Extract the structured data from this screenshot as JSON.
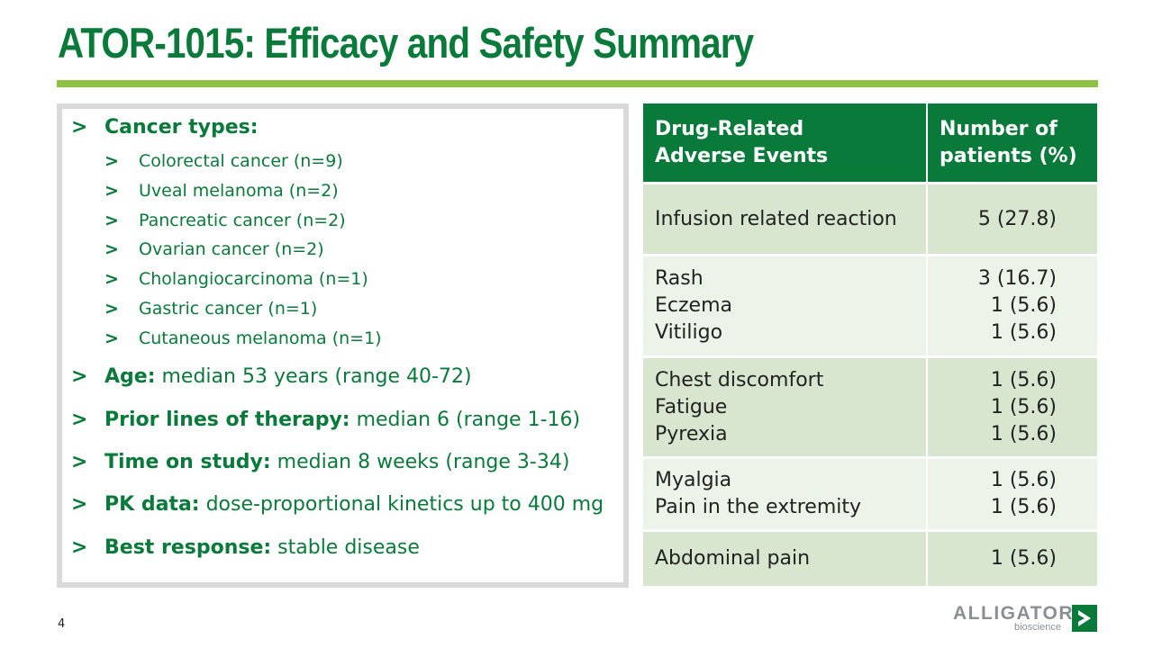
{
  "title": "ATOR-1015: Efficacy and Safety Summary",
  "left_panel": {
    "cancer_types_label": "Cancer types:",
    "cancer_types": [
      "Colorectal cancer (n=9)",
      "Uveal melanoma (n=2)",
      "Pancreatic cancer (n=2)",
      "Ovarian cancer (n=2)",
      "Cholangiocarcinoma (n=1)",
      "Gastric cancer (n=1)",
      "Cutaneous melanoma (n=1)"
    ],
    "bullets": [
      {
        "label": "Age:",
        "value": " median 53 years (range 40-72)"
      },
      {
        "label": "Prior lines of therapy:",
        "value": " median 6 (range 1-16)"
      },
      {
        "label": "Time on study:",
        "value": " median 8 weeks (range 3-34)"
      },
      {
        "label": "PK data:",
        "value": " dose-proportional kinetics up to 400 mg"
      },
      {
        "label": "Best response:",
        "value": " stable disease"
      }
    ],
    "arrow_glyph": ">"
  },
  "table": {
    "header": {
      "col1_line1": "Drug-Related",
      "col1_line2": "Adverse Events",
      "col2_line1": "Number of",
      "col2_line2": "patients (%)"
    },
    "groups": [
      {
        "events": [
          "Infusion related reaction"
        ],
        "counts": [
          "5 (27.8)"
        ]
      },
      {
        "events": [
          "Rash",
          "Eczema",
          "Vitiligo"
        ],
        "counts": [
          "3 (16.7)",
          "1 (5.6)",
          "1 (5.6)"
        ]
      },
      {
        "events": [
          "Chest discomfort",
          "Fatigue",
          "Pyrexia"
        ],
        "counts": [
          "1 (5.6)",
          "1 (5.6)",
          "1 (5.6)"
        ]
      },
      {
        "events": [
          "Myalgia",
          "Pain in the extremity"
        ],
        "counts": [
          "1 (5.6)",
          "1 (5.6)"
        ]
      },
      {
        "events": [
          "Abdominal pain"
        ],
        "counts": [
          "1 (5.6)"
        ]
      }
    ]
  },
  "page_number": "4",
  "logo": {
    "word": "ALLIGATOR",
    "sub": "bioscience"
  },
  "colors": {
    "brand_green": "#0a7a3a",
    "accent_lime": "#8cc23f",
    "row_dark": "#d8e6d0",
    "row_light": "#ecf3e8"
  }
}
